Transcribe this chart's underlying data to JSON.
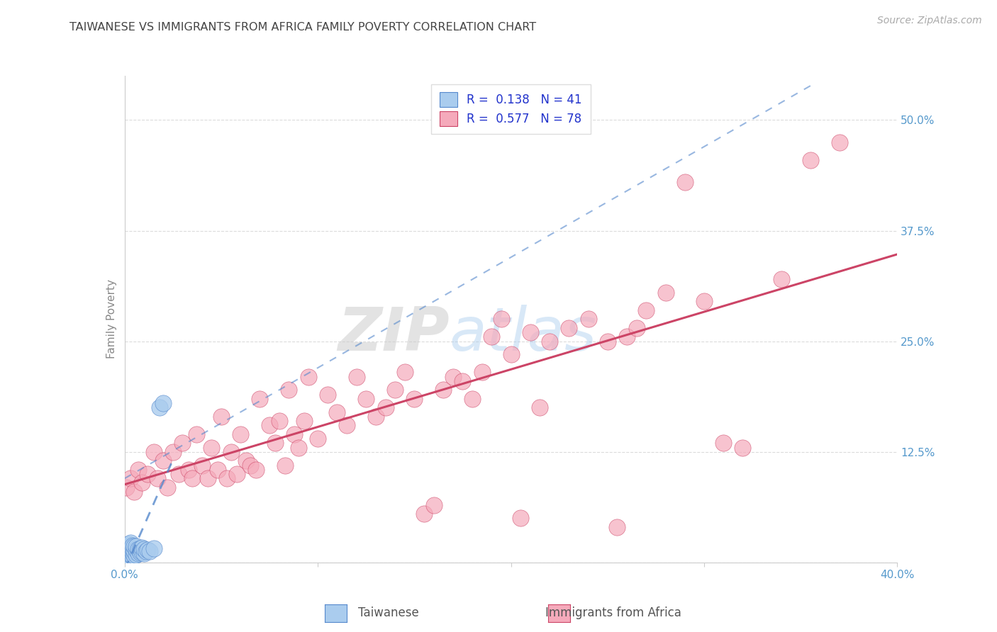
{
  "title": "TAIWANESE VS IMMIGRANTS FROM AFRICA FAMILY POVERTY CORRELATION CHART",
  "source": "Source: ZipAtlas.com",
  "ylabel": "Family Poverty",
  "x_min": 0.0,
  "x_max": 0.4,
  "y_min": 0.0,
  "y_max": 0.55,
  "x_ticks": [
    0.0,
    0.1,
    0.2,
    0.3,
    0.4
  ],
  "y_ticks": [
    0.0,
    0.125,
    0.25,
    0.375,
    0.5
  ],
  "taiwanese_R": 0.138,
  "taiwanese_N": 41,
  "africa_R": 0.577,
  "africa_N": 78,
  "taiwanese_color": "#aaccee",
  "africa_color": "#f5aabb",
  "taiwanese_line_color": "#5588cc",
  "africa_line_color": "#cc4466",
  "legend_text_color": "#2233cc",
  "watermark_zip": "ZIP",
  "watermark_atlas": "atlas",
  "background_color": "#ffffff",
  "grid_color": "#cccccc",
  "title_color": "#444444",
  "axis_label_color": "#888888",
  "tick_label_color": "#5599cc",
  "taiwanese_x": [
    0.001,
    0.001,
    0.001,
    0.001,
    0.001,
    0.001,
    0.002,
    0.002,
    0.002,
    0.002,
    0.002,
    0.002,
    0.003,
    0.003,
    0.003,
    0.003,
    0.003,
    0.004,
    0.004,
    0.004,
    0.004,
    0.005,
    0.005,
    0.005,
    0.006,
    0.006,
    0.006,
    0.007,
    0.007,
    0.008,
    0.008,
    0.009,
    0.009,
    0.01,
    0.01,
    0.011,
    0.012,
    0.013,
    0.015,
    0.018,
    0.02
  ],
  "taiwanese_y": [
    0.003,
    0.006,
    0.009,
    0.012,
    0.015,
    0.018,
    0.003,
    0.006,
    0.01,
    0.013,
    0.017,
    0.021,
    0.005,
    0.009,
    0.013,
    0.017,
    0.022,
    0.007,
    0.011,
    0.015,
    0.019,
    0.008,
    0.013,
    0.018,
    0.009,
    0.014,
    0.018,
    0.01,
    0.015,
    0.011,
    0.016,
    0.012,
    0.017,
    0.01,
    0.015,
    0.013,
    0.014,
    0.013,
    0.016,
    0.175,
    0.18
  ],
  "africa_x": [
    0.001,
    0.003,
    0.005,
    0.007,
    0.009,
    0.012,
    0.015,
    0.017,
    0.02,
    0.022,
    0.025,
    0.028,
    0.03,
    0.033,
    0.035,
    0.037,
    0.04,
    0.043,
    0.045,
    0.048,
    0.05,
    0.053,
    0.055,
    0.058,
    0.06,
    0.063,
    0.065,
    0.068,
    0.07,
    0.075,
    0.078,
    0.08,
    0.083,
    0.085,
    0.088,
    0.09,
    0.093,
    0.095,
    0.1,
    0.105,
    0.11,
    0.115,
    0.12,
    0.125,
    0.13,
    0.135,
    0.14,
    0.145,
    0.15,
    0.155,
    0.16,
    0.165,
    0.17,
    0.175,
    0.18,
    0.185,
    0.19,
    0.195,
    0.2,
    0.205,
    0.21,
    0.215,
    0.22,
    0.23,
    0.24,
    0.25,
    0.255,
    0.26,
    0.265,
    0.27,
    0.28,
    0.29,
    0.3,
    0.31,
    0.32,
    0.34,
    0.355,
    0.37
  ],
  "africa_y": [
    0.085,
    0.095,
    0.08,
    0.105,
    0.09,
    0.1,
    0.125,
    0.095,
    0.115,
    0.085,
    0.125,
    0.1,
    0.135,
    0.105,
    0.095,
    0.145,
    0.11,
    0.095,
    0.13,
    0.105,
    0.165,
    0.095,
    0.125,
    0.1,
    0.145,
    0.115,
    0.11,
    0.105,
    0.185,
    0.155,
    0.135,
    0.16,
    0.11,
    0.195,
    0.145,
    0.13,
    0.16,
    0.21,
    0.14,
    0.19,
    0.17,
    0.155,
    0.21,
    0.185,
    0.165,
    0.175,
    0.195,
    0.215,
    0.185,
    0.055,
    0.065,
    0.195,
    0.21,
    0.205,
    0.185,
    0.215,
    0.255,
    0.275,
    0.235,
    0.05,
    0.26,
    0.175,
    0.25,
    0.265,
    0.275,
    0.25,
    0.04,
    0.255,
    0.265,
    0.285,
    0.305,
    0.43,
    0.295,
    0.135,
    0.13,
    0.32,
    0.455,
    0.475
  ],
  "tw_line_x0": 0.0,
  "tw_line_y0": 0.095,
  "tw_line_x1": 0.03,
  "tw_line_y1": 0.18,
  "af_line_x0": 0.0,
  "af_line_y0": 0.095,
  "af_line_x1": 0.4,
  "af_line_y1": 0.275
}
